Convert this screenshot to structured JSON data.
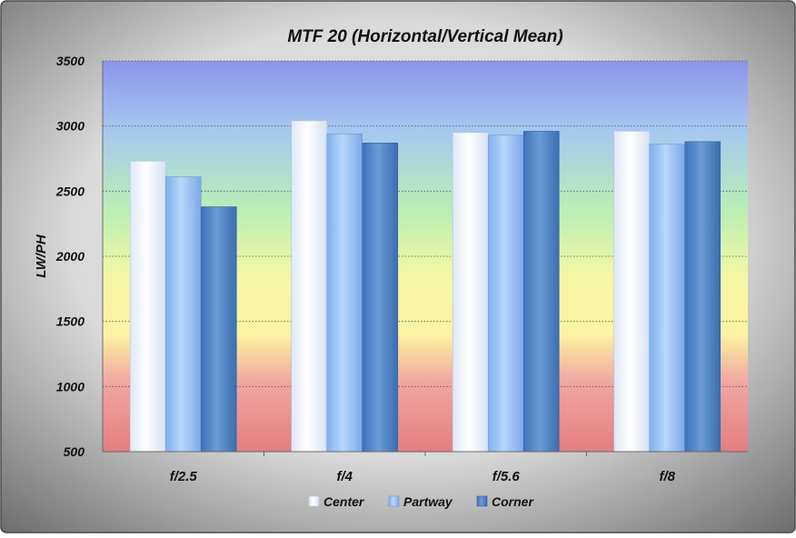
{
  "chart_data": {
    "type": "bar",
    "title": "MTF 20 (Horizontal/Vertical Mean)",
    "xlabel": "",
    "ylabel": "LW/PH",
    "ylim": [
      500,
      3500
    ],
    "yticks": [
      500,
      1000,
      1500,
      2000,
      2500,
      3000,
      3500
    ],
    "ytick_labels": [
      "500",
      "1000",
      "1500",
      "2000",
      "2500",
      "3000",
      "3500"
    ],
    "categories": [
      "f/2.5",
      "f/4",
      "f/5.6",
      "f/8"
    ],
    "series": [
      {
        "name": "Center",
        "values": [
          2730,
          3040,
          2950,
          2960
        ]
      },
      {
        "name": "Partway",
        "values": [
          2610,
          2940,
          2930,
          2860
        ]
      },
      {
        "name": "Corner",
        "values": [
          2380,
          2870,
          2960,
          2880
        ]
      }
    ],
    "grid": true,
    "legend_position": "bottom",
    "colors": {
      "frame_outer": "#5f5f5f",
      "frame_inner": "#e6e6e6",
      "center": "#f3f7fd",
      "partway": "#9cc4f5",
      "corner": "#4f86c9",
      "band_top": "#8c94ea",
      "band_mid": "#fafa9a",
      "band_bottom": "#e37c7c"
    }
  }
}
